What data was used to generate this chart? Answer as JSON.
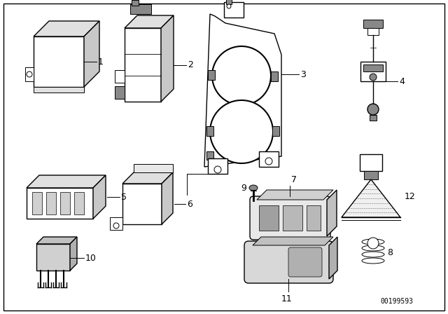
{
  "bg_color": "#ffffff",
  "border_color": "#000000",
  "doc_number": "00199593",
  "fig_width": 6.4,
  "fig_height": 4.48,
  "dpi": 100
}
